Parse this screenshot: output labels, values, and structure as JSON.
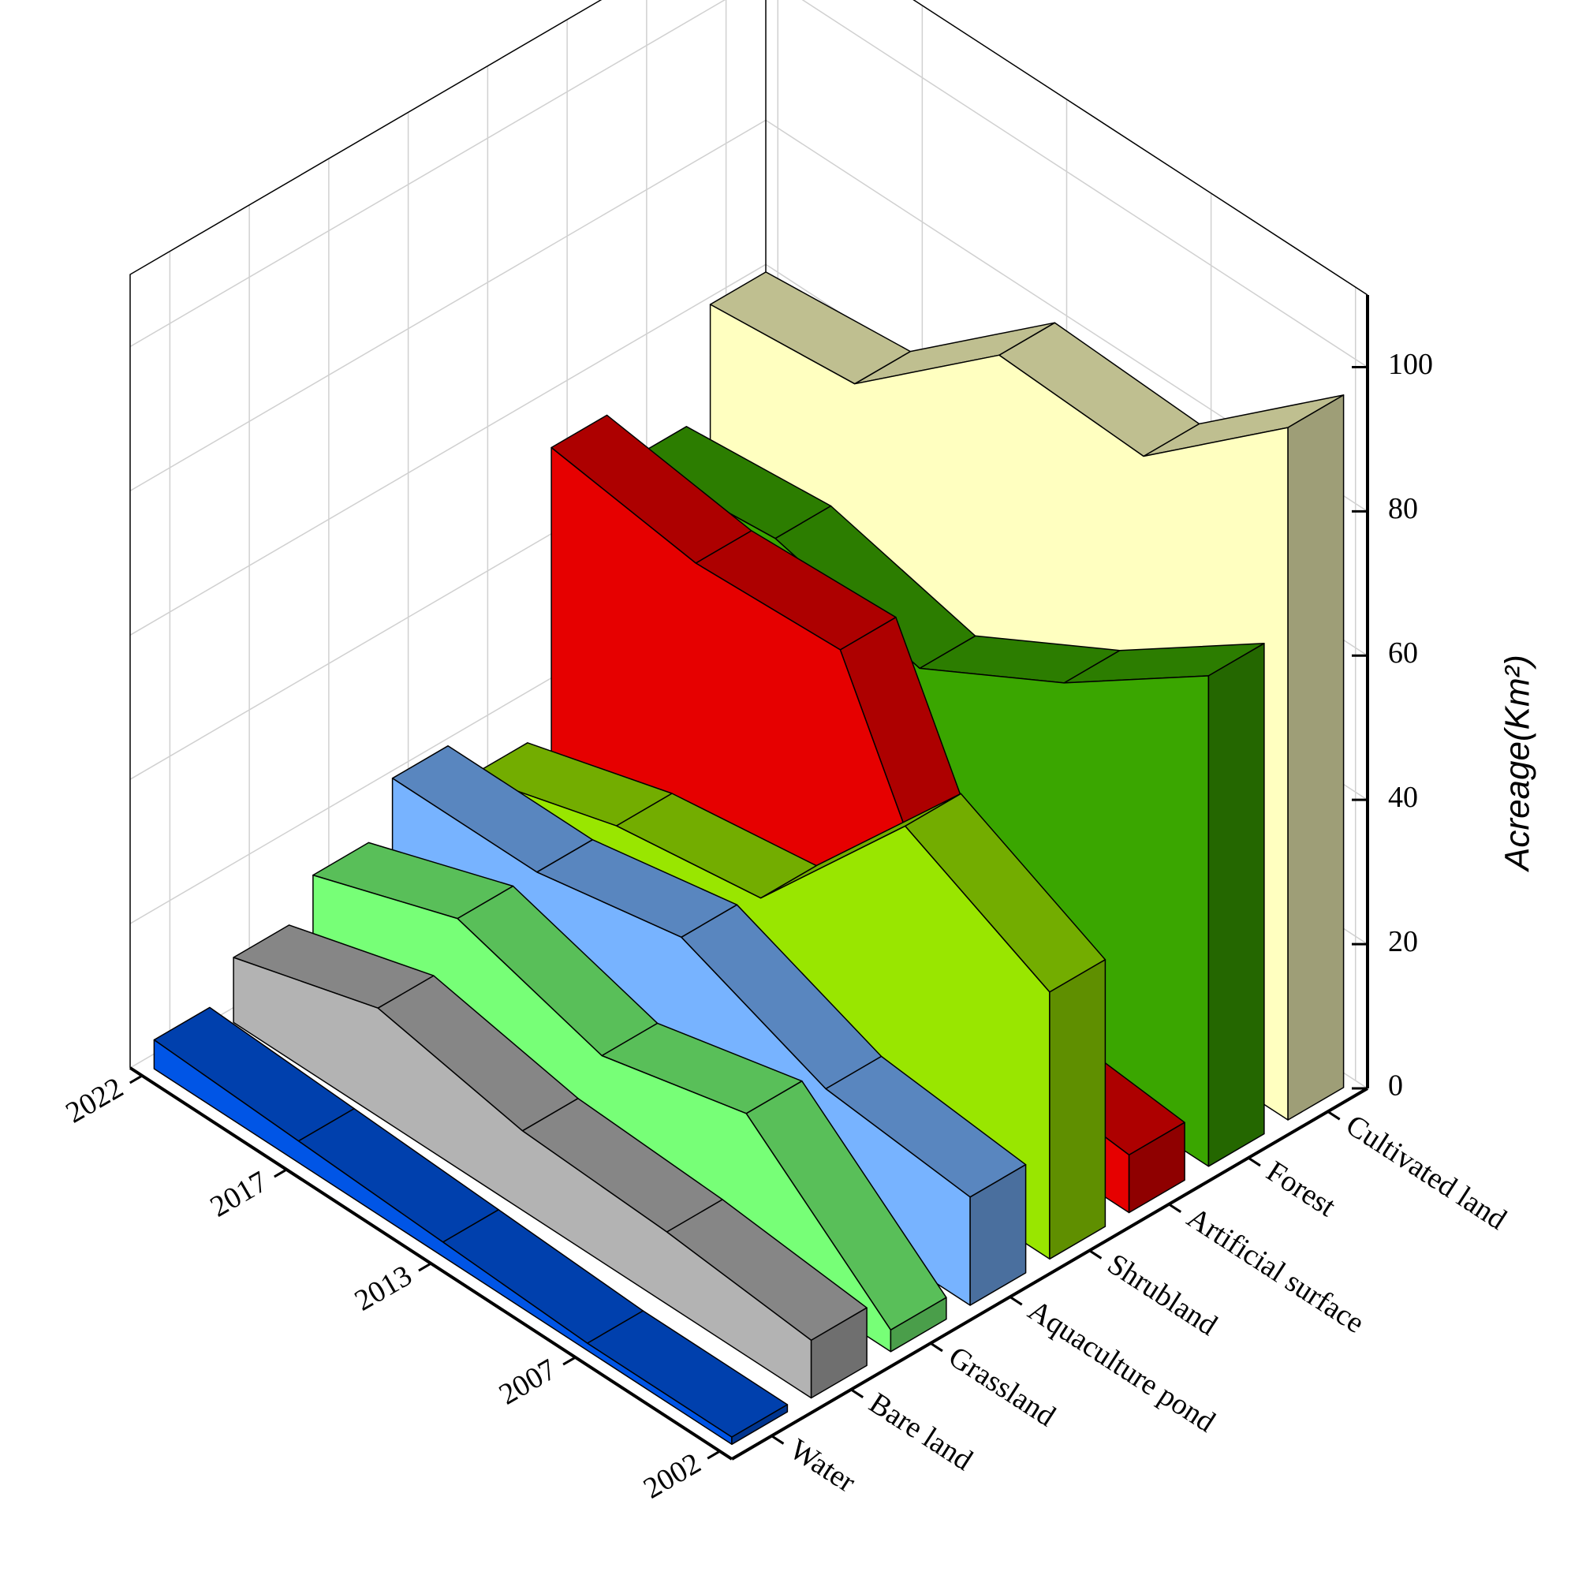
{
  "chart_data": {
    "type": "wall3d",
    "y_label": "Acreage(Km²)",
    "categories": [
      "2002",
      "2007",
      "2013",
      "2017",
      "2022"
    ],
    "series": [
      {
        "name": "Water",
        "color": "#0055e6",
        "values": [
          1,
          1,
          2,
          3,
          4
        ]
      },
      {
        "name": "Bare land",
        "color": "#b3b3b3",
        "values": [
          8,
          10,
          11,
          15,
          9
        ]
      },
      {
        "name": "Grassland",
        "color": "#77ff77",
        "values": [
          3,
          20,
          15,
          21,
          14
        ]
      },
      {
        "name": "Aquaculture pond",
        "color": "#77b3ff",
        "values": [
          15,
          17,
          25,
          21,
          21
        ]
      },
      {
        "name": "Shrubland",
        "color": "#99e600",
        "values": [
          37,
          47,
          24,
          21,
          15
        ]
      },
      {
        "name": "Artificial surface",
        "color": "#e60000",
        "values": [
          8,
          10,
          52,
          51,
          54
        ]
      },
      {
        "name": "Forest",
        "color": "#3aa600",
        "values": [
          68,
          54,
          43,
          48,
          46
        ]
      },
      {
        "name": "Cultivated land",
        "color": "#ffffc0",
        "values": [
          96,
          79,
          80,
          63,
          61
        ]
      }
    ],
    "ylim": [
      0,
      110
    ],
    "yticks": [
      0,
      20,
      40,
      60,
      80,
      100
    ],
    "grid": true
  }
}
